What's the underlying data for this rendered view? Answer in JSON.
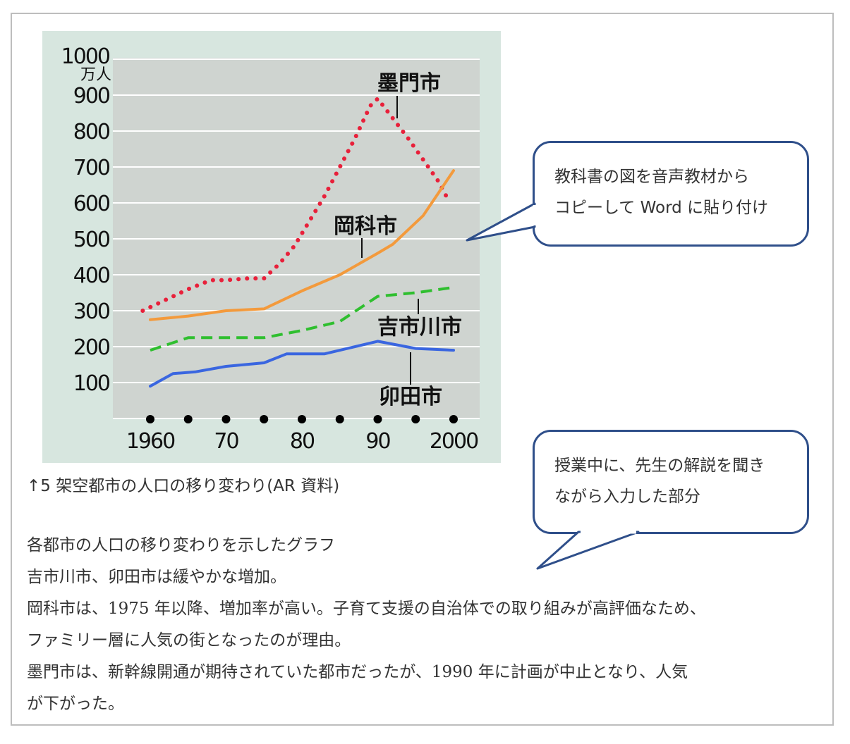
{
  "chart_data": {
    "type": "line",
    "ylabel": "万人",
    "ylim": [
      0,
      1000
    ],
    "yticks": [
      100,
      200,
      300,
      400,
      500,
      600,
      700,
      800,
      900,
      1000
    ],
    "xlim": [
      1960,
      2000
    ],
    "xtick_labels": [
      {
        "x": 1960,
        "label": "1960"
      },
      {
        "x": 1970,
        "label": "70"
      },
      {
        "x": 1980,
        "label": "80"
      },
      {
        "x": 1990,
        "label": "90"
      },
      {
        "x": 2000,
        "label": "2000"
      }
    ],
    "dots_x": [
      1960,
      1965,
      1970,
      1975,
      1980,
      1985,
      1990,
      1995,
      2000
    ],
    "grid": true,
    "series": [
      {
        "name": "墨門市",
        "style": "dotted",
        "color": "#e8203a",
        "points": [
          [
            1959,
            300
          ],
          [
            1961,
            320
          ],
          [
            1963,
            340
          ],
          [
            1965,
            360
          ],
          [
            1968,
            385
          ],
          [
            1970,
            385
          ],
          [
            1973,
            390
          ],
          [
            1975,
            390
          ],
          [
            1977,
            430
          ],
          [
            1979,
            480
          ],
          [
            1981,
            550
          ],
          [
            1983,
            620
          ],
          [
            1985,
            700
          ],
          [
            1987,
            780
          ],
          [
            1989,
            870
          ],
          [
            1990,
            890
          ],
          [
            1992,
            835
          ],
          [
            1994,
            780
          ],
          [
            1996,
            720
          ],
          [
            1998,
            660
          ],
          [
            1999,
            620
          ]
        ]
      },
      {
        "name": "岡科市",
        "style": "solid",
        "color": "#f39a3c",
        "points": [
          [
            1960,
            275
          ],
          [
            1965,
            285
          ],
          [
            1970,
            300
          ],
          [
            1975,
            305
          ],
          [
            1980,
            355
          ],
          [
            1985,
            400
          ],
          [
            1990,
            460
          ],
          [
            1992,
            485
          ],
          [
            1996,
            565
          ],
          [
            2000,
            690
          ]
        ]
      },
      {
        "name": "吉市川市",
        "style": "dashed",
        "color": "#2fbf2f",
        "points": [
          [
            1960,
            190
          ],
          [
            1965,
            225
          ],
          [
            1970,
            225
          ],
          [
            1975,
            225
          ],
          [
            1980,
            245
          ],
          [
            1985,
            270
          ],
          [
            1990,
            340
          ],
          [
            1995,
            350
          ],
          [
            2000,
            365
          ]
        ]
      },
      {
        "name": "卯田市",
        "style": "solid",
        "color": "#3a66e0",
        "points": [
          [
            1960,
            90
          ],
          [
            1963,
            125
          ],
          [
            1966,
            130
          ],
          [
            1970,
            145
          ],
          [
            1975,
            155
          ],
          [
            1978,
            180
          ],
          [
            1983,
            180
          ],
          [
            1986,
            195
          ],
          [
            1990,
            215
          ],
          [
            1995,
            195
          ],
          [
            2000,
            190
          ]
        ]
      }
    ]
  },
  "caption": "↑5 架空都市の人口の移り変わり(AR 資料)",
  "bubbles": [
    {
      "line1": "教科書の図を音声教材から",
      "line2": "コピーして Word に貼り付け"
    },
    {
      "line1": "授業中に、先生の解説を聞き",
      "line2": "ながら入力した部分"
    }
  ],
  "notes": [
    "各都市の人口の移り変わりを示したグラフ",
    "吉市川市、卯田市は緩やかな増加。",
    "岡科市は、1975 年以降、増加率が高い。子育て支援の自治体での取り組みが高評価なため、",
    "ファミリー層に人気の街となったのが理由。",
    "墨門市は、新幹線開通が期待されていた都市だったが、1990 年に計画が中止となり、人気",
    "が下がった。"
  ]
}
